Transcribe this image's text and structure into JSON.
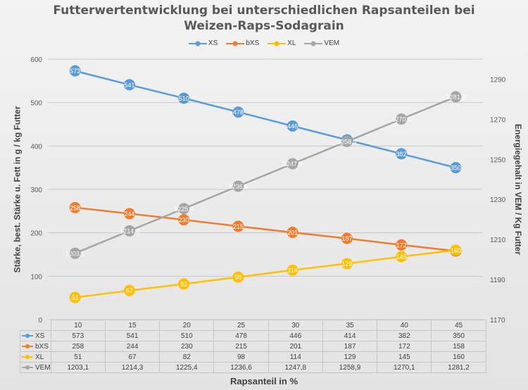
{
  "chart_data": {
    "type": "line",
    "title_line1": "Futterwertentwicklung bei unterschiedlichen Rapsanteilen bei",
    "title_line2": "Weizen-Raps-Sodagrain",
    "xlabel": "Rapsanteil in %",
    "ylabel_left": "Stärke, best. Stärke u. Fett in g / kg Futter",
    "ylabel_right": "Energiegehalt in VEM / Kg Futter",
    "categories": [
      "10",
      "15",
      "20",
      "25",
      "30",
      "35",
      "40",
      "45"
    ],
    "ylim_left": [
      0,
      600
    ],
    "yticks_left": [
      "0",
      "100",
      "200",
      "300",
      "400",
      "500",
      "600"
    ],
    "ylim_right": [
      1170,
      1300
    ],
    "yticks_right": [
      "1170",
      "1190",
      "1210",
      "1230",
      "1250",
      "1270",
      "1290"
    ],
    "legend_position": "top",
    "grid": true,
    "series": [
      {
        "name": "XS",
        "axis": "left",
        "color": "#5b9bd5",
        "values": [
          573,
          541,
          510,
          478,
          446,
          414,
          382,
          350
        ],
        "labels": [
          "573",
          "541",
          "510",
          "478",
          "446",
          "414",
          "382",
          "350"
        ]
      },
      {
        "name": "bXS",
        "axis": "left",
        "color": "#ed7d31",
        "values": [
          258,
          244,
          230,
          215,
          201,
          187,
          172,
          158
        ],
        "labels": [
          "258",
          "244",
          "230",
          "215",
          "201",
          "187",
          "172",
          "158"
        ]
      },
      {
        "name": "XL",
        "axis": "left",
        "color": "#ffc000",
        "values": [
          51,
          67,
          82,
          98,
          114,
          129,
          145,
          160
        ],
        "labels": [
          "51",
          "67",
          "82",
          "98",
          "114",
          "129",
          "145",
          "160"
        ]
      },
      {
        "name": "VEM",
        "axis": "right",
        "color": "#a5a5a5",
        "values": [
          1203.1,
          1214.3,
          1225.4,
          1236.6,
          1247.8,
          1258.9,
          1270.1,
          1281.2
        ],
        "labels": [
          "1203,1",
          "1214,3",
          "1225,4",
          "1236,6",
          "1247,8",
          "1258,9",
          "1270,1",
          "1281,2"
        ]
      }
    ]
  }
}
